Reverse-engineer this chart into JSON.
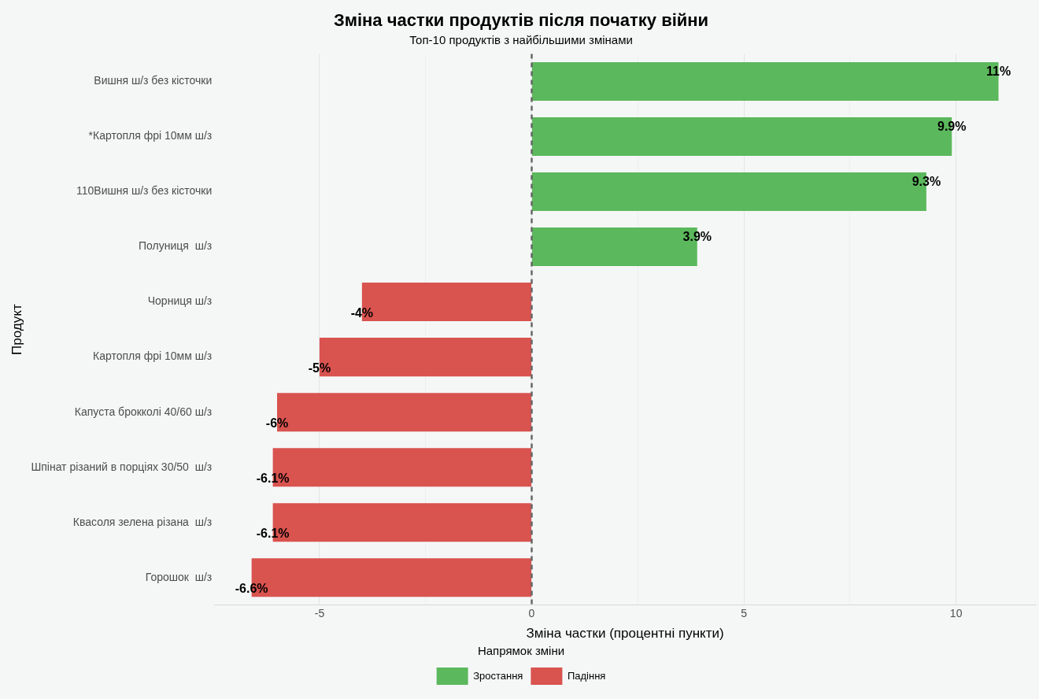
{
  "chart_data": {
    "type": "bar",
    "orientation": "horizontal",
    "title": "Зміна частки продуктів після початку війни",
    "subtitle": "Топ-10 продуктів з найбільшими змінами",
    "xlabel": "Зміна частки (процентні пункти)",
    "ylabel": "Продукт",
    "legend_title": "Напрямок зміни",
    "legend": "bottom",
    "grid": "x",
    "categories": [
      "Вишня ш/з без кісточки",
      "*Картопля фрі 10мм ш/з",
      "110Вишня ш/з без кісточки",
      "Полуниця  ш/з",
      "Чорниця ш/з",
      "Картопля фрі 10мм ш/з",
      "Капуста брокколі 40/60 ш/з",
      "Шпінат різаний в порціях 30/50  ш/з",
      "Квасоля зелена різана  ш/з",
      "Горошок  ш/з"
    ],
    "series": [
      {
        "name": "Зростання",
        "color": "#5cb85c",
        "values": [
          11,
          9.9,
          9.3,
          3.9,
          null,
          null,
          null,
          null,
          null,
          null
        ],
        "value_labels": [
          "11%",
          "9.9%",
          "9.3%",
          "3.9%",
          null,
          null,
          null,
          null,
          null,
          null
        ]
      },
      {
        "name": "Падіння",
        "color": "#d9534f",
        "values": [
          null,
          null,
          null,
          null,
          -4,
          -5,
          -6,
          -6.1,
          -6.1,
          -6.6
        ],
        "value_labels": [
          null,
          null,
          null,
          null,
          "-4%",
          "-5%",
          "-6%",
          "-6.1%",
          "-6.1%",
          "-6.6%"
        ]
      }
    ],
    "xlim": [
      -7.48,
      11.88
    ],
    "xticks": [
      -5,
      {
        "value": -2.5,
        "label": null
      },
      0,
      {
        "value": 2.5,
        "label": null
      },
      5,
      {
        "value": 7.5,
        "label": null
      },
      10
    ],
    "ref_lines": [
      {
        "axis": "x",
        "value": 0,
        "color": "#666666",
        "line_style": "dashed"
      }
    ]
  }
}
